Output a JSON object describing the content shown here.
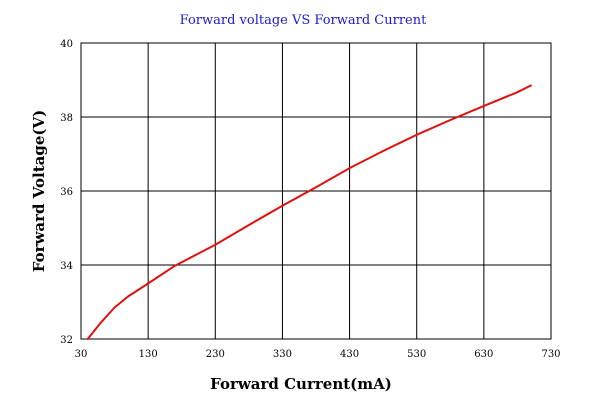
{
  "chart_data": {
    "type": "line",
    "title": "Forward voltage VS Forward Current",
    "xlabel": "Forward Current(mA)",
    "ylabel": "Forward Voltage(V)",
    "xlim": [
      30,
      730
    ],
    "ylim": [
      32,
      40
    ],
    "x_ticks": [
      30,
      130,
      230,
      330,
      430,
      530,
      630,
      730
    ],
    "y_ticks": [
      32,
      34,
      36,
      38,
      40
    ],
    "grid": true,
    "colors": {
      "line": "#e01010"
    },
    "series": [
      {
        "x": [
          40,
          60,
          80,
          100,
          130,
          170,
          230,
          280,
          330,
          380,
          430,
          480,
          530,
          580,
          630,
          680,
          700
        ],
        "values": [
          32.0,
          32.45,
          32.85,
          33.15,
          33.5,
          33.98,
          34.55,
          35.08,
          35.6,
          36.1,
          36.62,
          37.08,
          37.52,
          37.92,
          38.3,
          38.67,
          38.85
        ]
      }
    ]
  }
}
